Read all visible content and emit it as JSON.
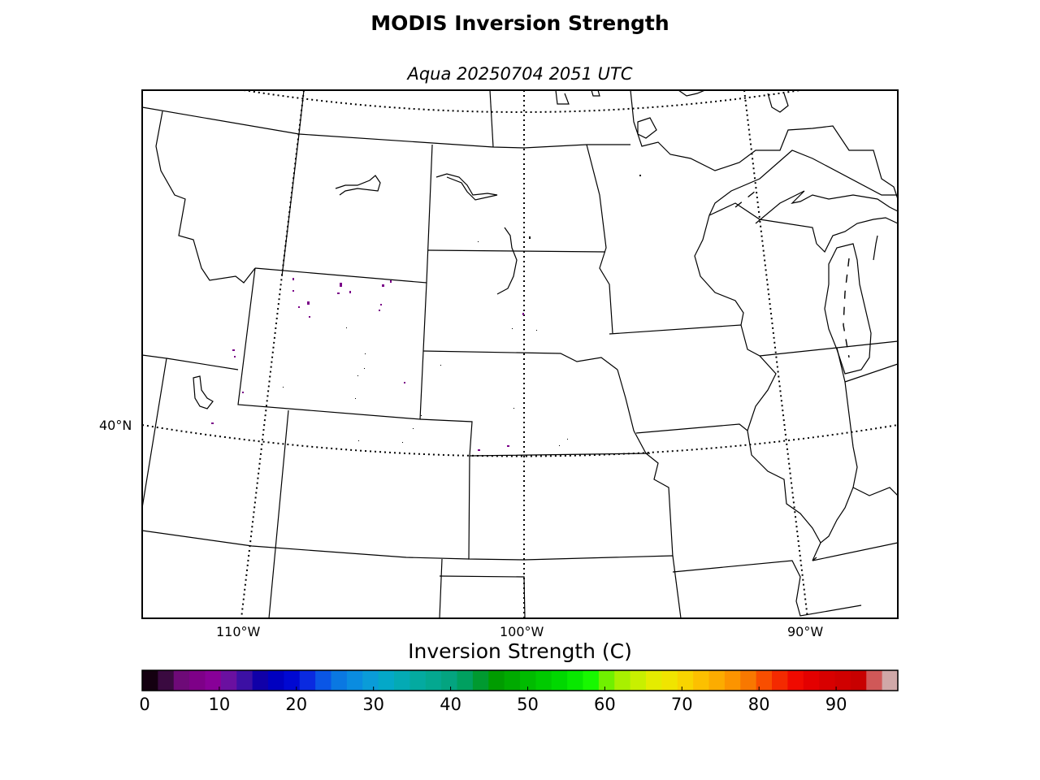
{
  "title": "MODIS Inversion Strength",
  "subtitle": "Aqua 20250704 2051 UTC",
  "map": {
    "lat_labels": [
      {
        "text": "40°N",
        "lat": 40
      }
    ],
    "lon_labels": [
      {
        "text": "110°W",
        "lon": -110
      },
      {
        "text": "100°W",
        "lon": -100
      },
      {
        "text": "90°W",
        "lon": -90
      }
    ]
  },
  "colorbar": {
    "label": "Inversion Strength (C)",
    "range": [
      0,
      98
    ],
    "ticks": [
      {
        "value": 0,
        "text": "0"
      },
      {
        "value": 10,
        "text": "10"
      },
      {
        "value": 20,
        "text": "20"
      },
      {
        "value": 30,
        "text": "30"
      },
      {
        "value": 40,
        "text": "40"
      },
      {
        "value": 50,
        "text": "50"
      },
      {
        "value": 60,
        "text": "60"
      },
      {
        "value": 70,
        "text": "70"
      },
      {
        "value": 80,
        "text": "80"
      },
      {
        "value": 90,
        "text": "90"
      }
    ],
    "colors": [
      "#140010",
      "#3a0a40",
      "#6e0a78",
      "#7e0088",
      "#880098",
      "#6a10a0",
      "#3c10a4",
      "#1000a8",
      "#0000c0",
      "#0008d2",
      "#0a2ae0",
      "#0a56e6",
      "#0a78e2",
      "#0a8ce0",
      "#0a9cd8",
      "#04a8c8",
      "#04aab4",
      "#04aaa0",
      "#04a890",
      "#04a480",
      "#00a060",
      "#009a30",
      "#009c00",
      "#00aa00",
      "#00bc00",
      "#00ca00",
      "#00d800",
      "#08e800",
      "#18f800",
      "#70f000",
      "#a8f000",
      "#c8f000",
      "#e4ec00",
      "#f0e400",
      "#f8d400",
      "#fcc000",
      "#fcac00",
      "#fc9400",
      "#f87800",
      "#f84e00",
      "#f42a00",
      "#f00a00",
      "#e40000",
      "#d80000",
      "#d00000",
      "#c80000",
      "#d05858",
      "#d0a8a8"
    ]
  }
}
